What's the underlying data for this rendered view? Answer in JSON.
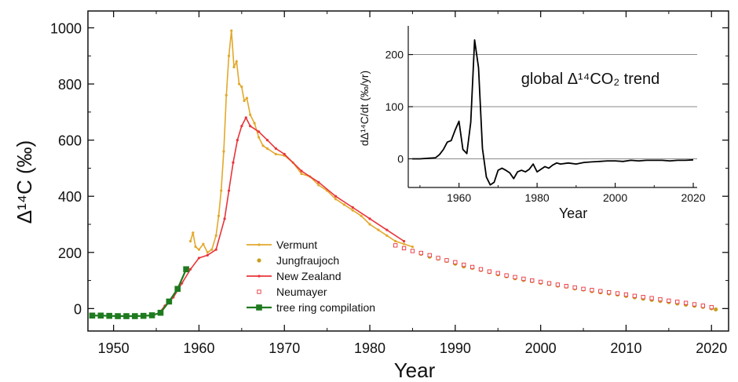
{
  "chart_data": [
    {
      "type": "line",
      "xlabel": "Year",
      "ylabel": "Δ¹⁴C (‰)",
      "xlim": [
        1947,
        2022
      ],
      "ylim": [
        -80,
        1060
      ],
      "xticks": [
        1950,
        1960,
        1970,
        1980,
        1990,
        2000,
        2010,
        2020
      ],
      "yticks": [
        0,
        200,
        400,
        600,
        800,
        1000
      ],
      "legend_position": "bottom-center",
      "series": [
        {
          "name": "Vermunt",
          "style": "line-small-markers",
          "color": "#E3A82B",
          "x": [
            1959.0,
            1959.3,
            1959.6,
            1960.0,
            1960.5,
            1961.0,
            1961.5,
            1962.0,
            1962.3,
            1962.6,
            1962.9,
            1963.2,
            1963.5,
            1963.8,
            1964.1,
            1964.4,
            1964.7,
            1965.0,
            1965.3,
            1965.6,
            1966.0,
            1966.5,
            1967.0,
            1967.5,
            1968.0,
            1969.0,
            1970.0,
            1971.0,
            1972.0,
            1973.0,
            1974.0,
            1975.0,
            1976.0,
            1977.0,
            1978.0,
            1979.0,
            1980.0,
            1981.0,
            1982.0,
            1983.0,
            1984.0,
            1985.0
          ],
          "y": [
            240,
            270,
            220,
            210,
            230,
            200,
            210,
            260,
            330,
            420,
            560,
            760,
            900,
            990,
            860,
            880,
            800,
            790,
            740,
            750,
            690,
            660,
            610,
            580,
            570,
            550,
            545,
            520,
            480,
            470,
            440,
            420,
            390,
            370,
            350,
            330,
            300,
            280,
            260,
            240,
            230,
            220
          ]
        },
        {
          "name": "Jungfraujoch",
          "style": "markers",
          "color": "#C8A020",
          "x": [
            1986,
            1987,
            1988,
            1989,
            1990,
            1991,
            1992,
            1993,
            1994,
            1995,
            1996,
            1997,
            1998,
            1999,
            2000,
            2001,
            2002,
            2003,
            2004,
            2005,
            2006,
            2007,
            2008,
            2009,
            2010,
            2011,
            2012,
            2013,
            2014,
            2015,
            2016,
            2017,
            2018,
            2019,
            2020,
            2020.5
          ],
          "y": [
            195,
            185,
            178,
            170,
            160,
            150,
            145,
            138,
            130,
            122,
            115,
            108,
            102,
            98,
            92,
            88,
            82,
            78,
            72,
            68,
            62,
            58,
            54,
            50,
            45,
            40,
            35,
            31,
            27,
            23,
            18,
            14,
            10,
            6,
            1,
            -3
          ]
        },
        {
          "name": "New Zealand",
          "style": "line-small-markers",
          "color": "#E8343A",
          "x": [
            1955.5,
            1956.0,
            1957.0,
            1958.0,
            1959.0,
            1960.0,
            1961.0,
            1962.0,
            1963.0,
            1963.5,
            1964.0,
            1964.5,
            1965.0,
            1965.5,
            1966.0,
            1967.0,
            1968.0,
            1969.0,
            1970.0,
            1972.0,
            1974.0,
            1976.0,
            1978.0,
            1980.0,
            1982.0,
            1984.0
          ],
          "y": [
            -10,
            10,
            40,
            90,
            140,
            180,
            190,
            210,
            320,
            420,
            520,
            600,
            650,
            680,
            650,
            630,
            600,
            570,
            550,
            490,
            450,
            400,
            360,
            320,
            280,
            240
          ]
        },
        {
          "name": "Neumayer",
          "style": "open-square-markers",
          "color": "#E8343A",
          "x": [
            1983,
            1984,
            1985,
            1986,
            1987,
            1988,
            1989,
            1990,
            1991,
            1992,
            1993,
            1994,
            1995,
            1996,
            1997,
            1998,
            1999,
            2000,
            2001,
            2002,
            2003,
            2004,
            2005,
            2006,
            2007,
            2008,
            2009,
            2010,
            2011,
            2012,
            2013,
            2014,
            2015,
            2016,
            2017,
            2018,
            2019,
            2020
          ],
          "y": [
            225,
            215,
            205,
            198,
            190,
            180,
            172,
            165,
            156,
            148,
            140,
            132,
            126,
            118,
            112,
            106,
            100,
            95,
            90,
            85,
            80,
            75,
            70,
            66,
            62,
            58,
            54,
            50,
            45,
            41,
            37,
            33,
            28,
            24,
            20,
            15,
            10,
            5
          ]
        },
        {
          "name": "tree ring compilation",
          "style": "line-square-markers",
          "color": "#1E7A1E",
          "x": [
            1947.5,
            1948.5,
            1949.5,
            1950.5,
            1951.5,
            1952.5,
            1953.5,
            1954.5,
            1955.5,
            1956.5,
            1957.5,
            1958.5
          ],
          "y": [
            -25,
            -25,
            -26,
            -27,
            -27,
            -27,
            -26,
            -24,
            -15,
            25,
            70,
            140
          ]
        }
      ]
    },
    {
      "type": "line",
      "title": "global Δ¹⁴CO₂ trend",
      "xlabel": "Year",
      "ylabel": "dΔ¹⁴C/dt (‰/yr)",
      "xlim": [
        1947,
        2021
      ],
      "ylim": [
        -55,
        255
      ],
      "xticks": [
        1960,
        1980,
        2000,
        2020
      ],
      "yticks": [
        0,
        100,
        200
      ],
      "grid": "horizontal",
      "series": [
        {
          "color": "#000000",
          "x": [
            1948,
            1950,
            1952,
            1954,
            1955,
            1956,
            1957,
            1958,
            1959,
            1960,
            1961,
            1962,
            1963,
            1964,
            1965,
            1966,
            1967,
            1968,
            1969,
            1970,
            1971,
            1972,
            1973,
            1974,
            1975,
            1976,
            1977,
            1978,
            1979,
            1980,
            1981,
            1982,
            1983,
            1984,
            1985,
            1986,
            1988,
            1990,
            1992,
            1994,
            1996,
            1998,
            2000,
            2002,
            2004,
            2006,
            2008,
            2010,
            2012,
            2014,
            2016,
            2018,
            2020
          ],
          "y": [
            0,
            0,
            1,
            2,
            8,
            18,
            32,
            35,
            55,
            72,
            18,
            10,
            70,
            228,
            175,
            20,
            -35,
            -50,
            -45,
            -22,
            -18,
            -22,
            -27,
            -38,
            -25,
            -22,
            -25,
            -20,
            -10,
            -25,
            -20,
            -15,
            -18,
            -12,
            -8,
            -10,
            -8,
            -10,
            -7,
            -6,
            -5,
            -4,
            -4,
            -5,
            -3,
            -4,
            -3,
            -3,
            -3,
            -4,
            -3,
            -3,
            -2
          ]
        }
      ]
    }
  ]
}
